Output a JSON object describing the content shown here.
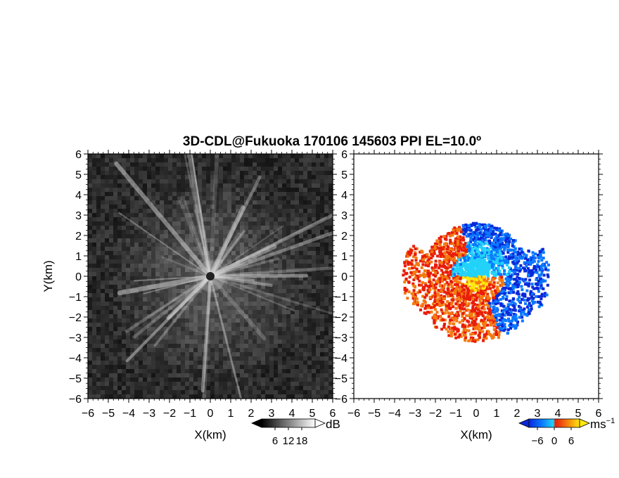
{
  "chart_data": [
    {
      "type": "heatmap",
      "panel": "left",
      "title": "3D-CDL@Fukuoka 170106 145603 PPI EL=10.0º",
      "xlabel": "X(km)",
      "ylabel": "Y(km)",
      "xlim": [
        -6,
        6
      ],
      "ylim": [
        -6,
        6
      ],
      "xticks": [
        "−6",
        "−5",
        "−4",
        "−3",
        "−2",
        "−1",
        "0",
        "1",
        "2",
        "3",
        "4",
        "5",
        "6"
      ],
      "yticks": [
        "6",
        "5",
        "4",
        "3",
        "2",
        "1",
        "0",
        "−1",
        "−2",
        "−3",
        "−4",
        "−5",
        "−6"
      ],
      "field": "signal intensity",
      "colormap": "grayscale",
      "colorbar": {
        "unit": "dB",
        "range": [
          0,
          24
        ],
        "ticks": [
          "6",
          "12",
          "18"
        ]
      },
      "description_values": {
        "center": [
          0,
          0
        ],
        "max_range_km": 6
      }
    },
    {
      "type": "heatmap",
      "panel": "right",
      "xlabel": "X(km)",
      "xlim": [
        -6,
        6
      ],
      "ylim": [
        -6,
        6
      ],
      "xticks": [
        "−6",
        "−5",
        "−4",
        "−3",
        "−2",
        "−1",
        "0",
        "1",
        "2",
        "3",
        "4",
        "5",
        "6"
      ],
      "yticks": [
        "6",
        "5",
        "4",
        "3",
        "2",
        "1",
        "0",
        "−1",
        "−2",
        "−3",
        "−4",
        "−5",
        "−6"
      ],
      "field": "Doppler velocity",
      "colormap": "blue-cyan-red-orange-yellow",
      "colorbar": {
        "unit": "ms",
        "unit_exponent": "−1",
        "range": [
          -9,
          9
        ],
        "ticks": [
          "−6",
          "0",
          "6"
        ]
      },
      "colors": {
        "neg_far": "#0a28d8",
        "neg_mid": "#0a78ff",
        "neg_near": "#22d2f8",
        "pos_near": "#e81c0a",
        "pos_mid": "#f47a10",
        "pos_far": "#ffe80a"
      }
    }
  ]
}
